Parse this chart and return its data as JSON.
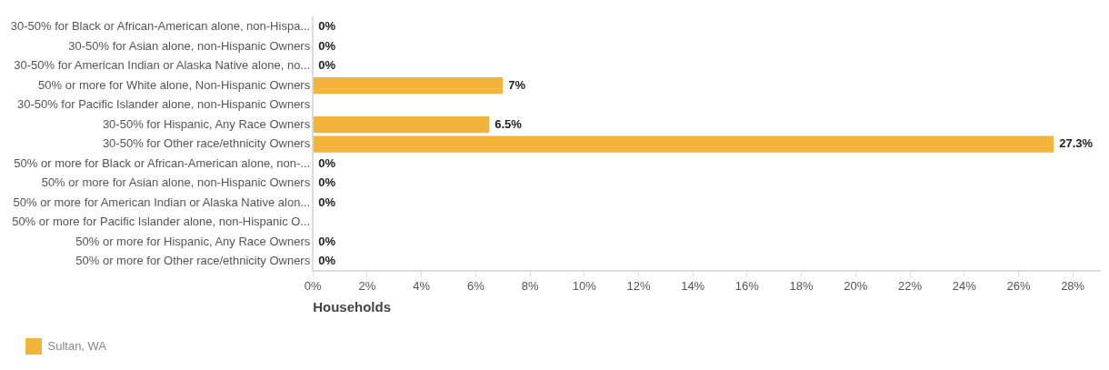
{
  "chart_data": {
    "type": "bar",
    "orientation": "horizontal",
    "xlabel": "Households",
    "categories": [
      "30-50% for Black or African-American alone, non-Hispa...",
      "30-50% for Asian alone, non-Hispanic Owners",
      "30-50% for American Indian or Alaska Native alone, no...",
      "50% or more for White alone, Non-Hispanic Owners",
      "30-50% for Pacific Islander alone, non-Hispanic Owners",
      "30-50% for Hispanic, Any Race Owners",
      "30-50% for Other race/ethnicity Owners",
      "50% or more for Black or African-American alone, non-...",
      "50% or more for Asian alone, non-Hispanic Owners",
      "50% or more for American Indian or Alaska Native alon...",
      "50% or more for Pacific Islander alone, non-Hispanic O...",
      "50% or more for Hispanic, Any Race Owners",
      "50% or more for Other race/ethnicity Owners"
    ],
    "series": [
      {
        "name": "Sultan, WA",
        "color": "#f3b43c",
        "values": [
          0,
          0,
          0,
          7,
          null,
          6.5,
          27.3,
          0,
          0,
          0,
          null,
          0,
          0
        ],
        "value_labels": [
          "0%",
          "0%",
          "0%",
          "7%",
          null,
          "6.5%",
          "27.3%",
          "0%",
          "0%",
          "0%",
          null,
          "0%",
          "0%"
        ]
      }
    ],
    "xlim": [
      0,
      29
    ],
    "xticks": [
      {
        "value": 0,
        "label": "0%"
      },
      {
        "value": 2,
        "label": "2%"
      },
      {
        "value": 4,
        "label": "4%"
      },
      {
        "value": 6,
        "label": "6%"
      },
      {
        "value": 8,
        "label": "8%"
      },
      {
        "value": 10,
        "label": "10%"
      },
      {
        "value": 12,
        "label": "12%"
      },
      {
        "value": 14,
        "label": "14%"
      },
      {
        "value": 16,
        "label": "16%"
      },
      {
        "value": 18,
        "label": "18%"
      },
      {
        "value": 20,
        "label": "20%"
      },
      {
        "value": 22,
        "label": "22%"
      },
      {
        "value": 24,
        "label": "24%"
      },
      {
        "value": 26,
        "label": "26%"
      },
      {
        "value": 28,
        "label": "28%"
      }
    ],
    "grid": false,
    "legend": "bottom left"
  }
}
